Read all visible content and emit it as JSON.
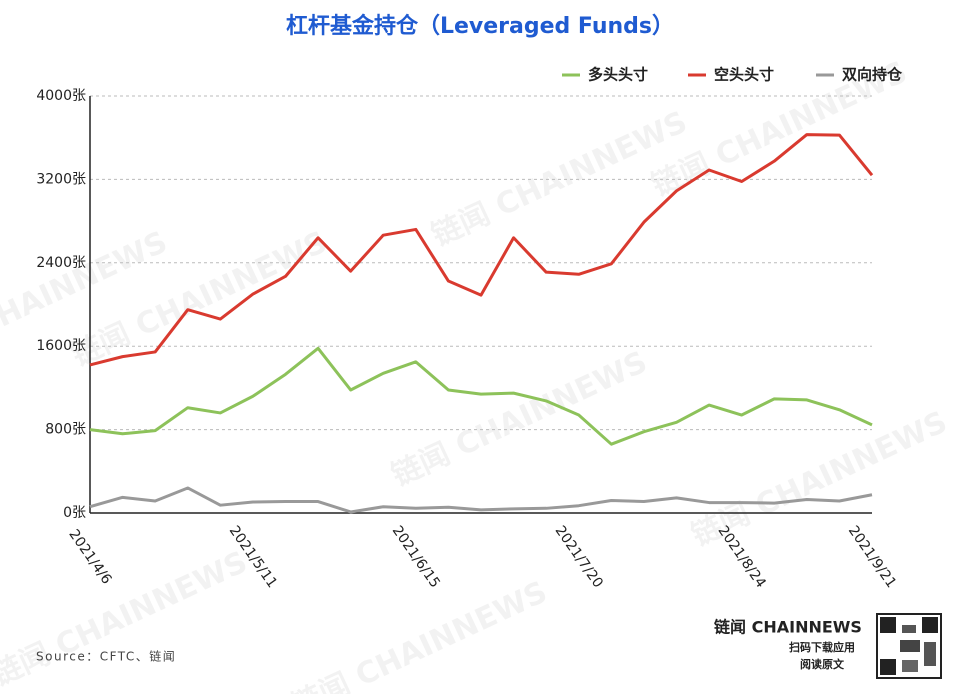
{
  "chart_data": {
    "type": "line",
    "title": "杠杆基金持仓（Leveraged Funds）",
    "categories": [
      "2021/4/6",
      null,
      null,
      null,
      null,
      "2021/5/11",
      null,
      null,
      null,
      null,
      "2021/6/15",
      null,
      null,
      null,
      null,
      "2021/7/20",
      null,
      null,
      null,
      null,
      "2021/8/24",
      null,
      null,
      null,
      "2021/9/21"
    ],
    "series": [
      {
        "name": "多头头寸",
        "color": "#8dc25a",
        "values": [
          800,
          760,
          790,
          1010,
          960,
          1120,
          1330,
          1580,
          1180,
          1340,
          1450,
          1180,
          1140,
          1150,
          1075,
          940,
          660,
          780,
          870,
          1035,
          940,
          1095,
          1085,
          990,
          845
        ]
      },
      {
        "name": "空头头寸",
        "color": "#d93a2f",
        "values": [
          1420,
          1500,
          1545,
          1950,
          1860,
          2100,
          2270,
          2640,
          2320,
          2665,
          2720,
          2225,
          2090,
          2640,
          2310,
          2290,
          2390,
          2790,
          3090,
          3290,
          3180,
          3375,
          3630,
          3625,
          3240
        ]
      },
      {
        "name": "双向持仓",
        "color": "#999999",
        "values": [
          60,
          150,
          115,
          240,
          75,
          105,
          110,
          110,
          10,
          60,
          45,
          55,
          30,
          40,
          45,
          70,
          120,
          110,
          145,
          100,
          100,
          95,
          130,
          115,
          175
        ]
      }
    ],
    "ylim": [
      0,
      4000
    ],
    "yticks": [
      {
        "value": 0,
        "label": "0张"
      },
      {
        "value": 800,
        "label": "800张"
      },
      {
        "value": 1600,
        "label": "1600张"
      },
      {
        "value": 2400,
        "label": "2400张"
      },
      {
        "value": 3200,
        "label": "3200张"
      },
      {
        "value": 4000,
        "label": "4000张"
      }
    ],
    "grid": true,
    "legend": "top-right"
  },
  "footer": {
    "source": "Source：CFTC、链闻",
    "brand": "链闻 CHAINNEWS",
    "download": "扫码下载应用",
    "read": "阅读原文",
    "watermark": "链闻 CHAINNEWS"
  }
}
